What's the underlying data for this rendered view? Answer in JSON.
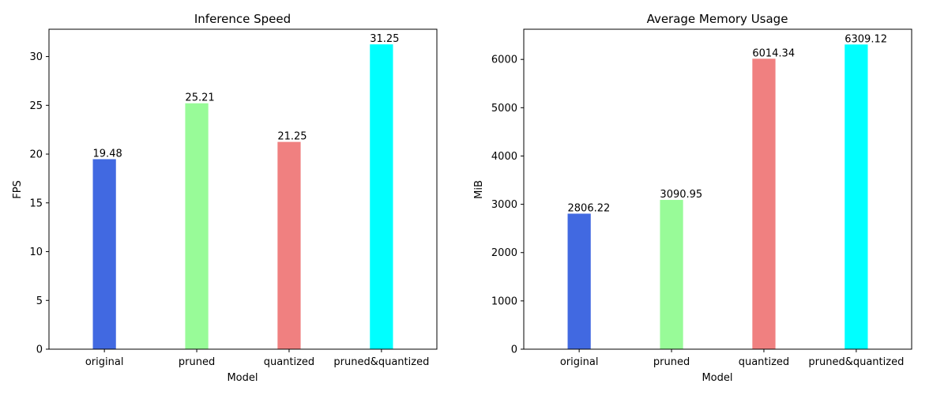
{
  "chart_data": [
    {
      "type": "bar",
      "title": "Inference Speed",
      "xlabel": "Model",
      "ylabel": "FPS",
      "categories": [
        "original",
        "pruned",
        "quantized",
        "pruned&quantized"
      ],
      "values": [
        19.48,
        25.21,
        21.25,
        31.25
      ],
      "data_labels": [
        "19.48",
        "25.21",
        "21.25",
        "31.25"
      ],
      "colors": [
        "#4169e1",
        "#98fb98",
        "#f08080",
        "#00ffff"
      ],
      "ylim": [
        0,
        32.8
      ],
      "yticks": [
        0,
        5,
        10,
        15,
        20,
        25,
        30
      ],
      "grid": false,
      "legend": "none"
    },
    {
      "type": "bar",
      "title": "Average Memory Usage",
      "xlabel": "Model",
      "ylabel": "MiB",
      "categories": [
        "original",
        "pruned",
        "quantized",
        "pruned&quantized"
      ],
      "values": [
        2806.22,
        3090.95,
        6014.34,
        6309.12
      ],
      "data_labels": [
        "2806.22",
        "3090.95",
        "6014.34",
        "6309.12"
      ],
      "colors": [
        "#4169e1",
        "#98fb98",
        "#f08080",
        "#00ffff"
      ],
      "ylim": [
        0,
        6625
      ],
      "yticks": [
        0,
        1000,
        2000,
        3000,
        4000,
        5000,
        6000
      ],
      "grid": false,
      "legend": "none"
    }
  ]
}
